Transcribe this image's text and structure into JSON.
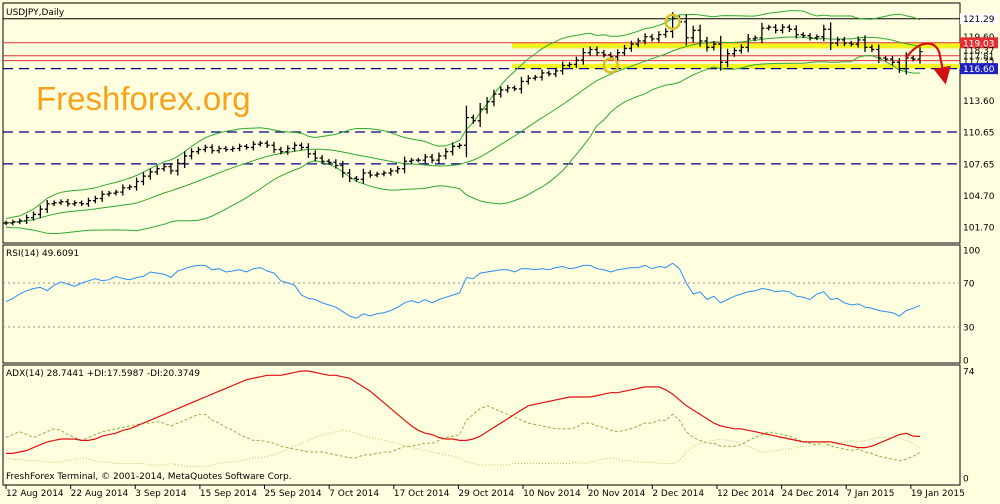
{
  "header": {
    "symbol_label": "USDJPY,Daily"
  },
  "watermark": "Freshforex.org",
  "footer": {
    "copyright": "FreshForex Terminal, © 2001-2014, MetaQuotes Software Corp."
  },
  "colors": {
    "background": "#ffffe0",
    "bollinger": "#2ea82e",
    "rsi": "#2a8df0",
    "adx": "#e01010",
    "di_plus": "#8fb04a",
    "di_minus": "#c0c060",
    "level_red": "#e03030",
    "level_yellow": "#f3f300",
    "watermark": "#f7a11a",
    "forecast_arrow": "#d01010"
  },
  "chart_data": [
    {
      "type": "candlestick",
      "title": "USDJPY,Daily",
      "ylim": [
        100.5,
        122.3
      ],
      "y_ticks": [
        "121.29",
        "119.60",
        "119.03",
        "118.37",
        "117.81",
        "117.35",
        "116.60",
        "113.60",
        "110.65",
        "107.65",
        "104.70",
        "101.70"
      ],
      "y_tick_values": [
        121.29,
        119.6,
        119.03,
        118.37,
        117.81,
        117.35,
        116.6,
        113.6,
        110.65,
        107.65,
        104.7,
        101.7
      ],
      "highlighted_ticks": [
        "121.29",
        "119.03",
        "116.60"
      ],
      "x_labels": [
        "12 Aug 2014",
        "22 Aug 2014",
        "3 Sep 2014",
        "15 Sep 2014",
        "25 Sep 2014",
        "7 Oct 2014",
        "17 Oct 2014",
        "29 Oct 2014",
        "10 Nov 2014",
        "20 Nov 2014",
        "2 Dec 2014",
        "12 Dec 2014",
        "24 Dec 2014",
        "7 Jan 2015",
        "19 Jan 2015"
      ],
      "close": [
        102.1,
        102.2,
        102.3,
        102.6,
        102.9,
        103.4,
        103.9,
        104.0,
        104.1,
        103.9,
        104.0,
        103.9,
        104.2,
        104.4,
        104.8,
        104.9,
        105.0,
        105.4,
        105.5,
        106.0,
        106.5,
        106.9,
        107.2,
        107.4,
        107.0,
        107.7,
        108.4,
        108.8,
        109.0,
        109.2,
        108.9,
        109.1,
        109.0,
        109.1,
        109.3,
        109.2,
        109.5,
        109.6,
        109.4,
        109.0,
        108.8,
        109.1,
        109.4,
        109.2,
        108.6,
        108.2,
        107.9,
        107.8,
        107.5,
        106.8,
        106.3,
        106.2,
        106.8,
        106.6,
        106.7,
        106.8,
        107.0,
        107.2,
        107.9,
        108.0,
        108.0,
        108.3,
        108.0,
        108.4,
        108.8,
        109.3,
        109.4,
        112.0,
        111.7,
        112.8,
        113.5,
        114.2,
        114.6,
        114.8,
        114.7,
        115.4,
        115.7,
        115.8,
        116.2,
        116.1,
        116.4,
        116.9,
        117.0,
        117.4,
        118.1,
        118.4,
        118.1,
        117.9,
        117.7,
        118.1,
        118.5,
        118.9,
        119.2,
        119.6,
        119.4,
        119.8,
        120.1,
        121.3,
        121.0,
        119.5,
        120.2,
        119.2,
        118.6,
        118.9,
        117.2,
        118.0,
        118.3,
        118.6,
        119.4,
        119.5,
        120.4,
        120.5,
        120.2,
        120.5,
        120.3,
        119.8,
        119.7,
        119.5,
        119.6,
        120.3,
        119.0,
        119.3,
        119.0,
        118.9,
        119.3,
        118.6,
        118.4,
        117.6,
        117.5,
        117.2,
        116.6,
        117.6,
        117.5,
        118.2
      ],
      "horizontal_levels": [
        {
          "value": 121.29,
          "style": "solid",
          "color": "#000000"
        },
        {
          "value": 119.03,
          "style": "solid",
          "color": "#e03030"
        },
        {
          "value": 117.81,
          "style": "solid",
          "color": "#e03030"
        },
        {
          "value": 117.35,
          "style": "solid",
          "color": "#e03030"
        },
        {
          "value": 116.6,
          "style": "dashed",
          "color": "#000080"
        },
        {
          "value": 110.65,
          "style": "dashed",
          "color": "#000080"
        },
        {
          "value": 107.65,
          "style": "dashed",
          "color": "#000080"
        }
      ],
      "highlight_zones": [
        {
          "from": 118.5,
          "to": 119.03,
          "color": "#f3f300"
        },
        {
          "from": 116.6,
          "to": 117.05,
          "color": "#f3f300"
        }
      ],
      "indicator": "Bollinger Bands"
    },
    {
      "type": "line",
      "title": "RSI(14) 49.6091",
      "ylim": [
        0,
        100
      ],
      "y_ticks": [
        "100",
        "70",
        "30",
        "0"
      ],
      "levels": [
        70,
        30
      ],
      "series": [
        {
          "name": "RSI(14)",
          "values": [
            53,
            56,
            60,
            63,
            65,
            66,
            63,
            68,
            71,
            69,
            67,
            70,
            72,
            74,
            72,
            73,
            76,
            74,
            73,
            75,
            76,
            80,
            79,
            78,
            75,
            81,
            83,
            85,
            86,
            86,
            82,
            83,
            80,
            81,
            82,
            80,
            83,
            84,
            81,
            79,
            72,
            70,
            68,
            59,
            56,
            55,
            52,
            50,
            48,
            44,
            40,
            38,
            42,
            40,
            42,
            43,
            45,
            48,
            52,
            54,
            52,
            55,
            52,
            55,
            57,
            59,
            61,
            75,
            74,
            79,
            80,
            81,
            82,
            82,
            80,
            83,
            83,
            82,
            83,
            82,
            84,
            85,
            83,
            84,
            86,
            86,
            83,
            82,
            80,
            82,
            83,
            84,
            84,
            86,
            83,
            85,
            84,
            88,
            83,
            70,
            60,
            62,
            55,
            58,
            52,
            55,
            58,
            60,
            62,
            63,
            65,
            64,
            62,
            63,
            62,
            58,
            57,
            55,
            60,
            62,
            55,
            56,
            52,
            50,
            51,
            48,
            47,
            45,
            44,
            43,
            40,
            45,
            47,
            49.6
          ]
        }
      ]
    },
    {
      "type": "line",
      "title": "ADX(14) 28.7441 +DI:17.5987 -DI:20.3749",
      "ylim": [
        0,
        74
      ],
      "y_ticks": [
        "74",
        "0"
      ],
      "series": [
        {
          "name": "ADX(14)",
          "values": [
            17,
            17,
            18,
            19,
            21,
            23,
            25,
            26,
            27,
            27,
            27,
            26,
            26,
            27,
            29,
            30,
            31,
            33,
            34,
            36,
            38,
            40,
            42,
            44,
            46,
            48,
            50,
            52,
            54,
            56,
            58,
            60,
            62,
            64,
            66,
            68,
            69,
            70,
            71,
            71,
            71,
            72,
            73,
            74,
            74,
            73,
            72,
            71,
            71,
            70,
            69,
            66,
            63,
            60,
            56,
            52,
            48,
            44,
            40,
            36,
            33,
            31,
            30,
            28,
            27,
            27,
            26,
            26,
            27,
            29,
            32,
            35,
            38,
            41,
            44,
            47,
            50,
            51,
            52,
            53,
            54,
            55,
            56,
            56,
            56,
            56,
            57,
            58,
            59,
            59,
            60,
            61,
            62,
            63,
            63,
            63,
            61,
            58,
            54,
            50,
            47,
            44,
            41,
            38,
            36,
            35,
            34,
            34,
            33,
            32,
            31,
            30,
            29,
            28,
            27,
            26,
            25,
            25,
            25,
            25,
            25,
            24,
            23,
            22,
            21,
            21,
            22,
            24,
            26,
            28,
            30,
            31,
            29,
            28.7
          ]
        },
        {
          "name": "+DI",
          "values": [
            28,
            30,
            32,
            30,
            28,
            30,
            32,
            34,
            33,
            30,
            28,
            26,
            28,
            30,
            32,
            33,
            34,
            35,
            36,
            37,
            38,
            38,
            39,
            38,
            36,
            38,
            40,
            42,
            44,
            44,
            40,
            38,
            35,
            33,
            30,
            28,
            26,
            26,
            25,
            24,
            22,
            21,
            20,
            19,
            18,
            18,
            18,
            17,
            16,
            15,
            14,
            14,
            16,
            16,
            17,
            18,
            18,
            20,
            22,
            22,
            23,
            24,
            24,
            26,
            28,
            29,
            30,
            40,
            44,
            48,
            50,
            48,
            46,
            44,
            42,
            40,
            38,
            37,
            36,
            35,
            34,
            34,
            34,
            35,
            38,
            38,
            36,
            35,
            33,
            32,
            33,
            34,
            36,
            38,
            38,
            40,
            40,
            44,
            40,
            32,
            28,
            26,
            24,
            24,
            22,
            22,
            22,
            23,
            26,
            28,
            30,
            32,
            31,
            30,
            29,
            27,
            25,
            24,
            23,
            25,
            22,
            21,
            20,
            19,
            20,
            18,
            17,
            15,
            14,
            13,
            12,
            13,
            15,
            17.6
          ]
        },
        {
          "name": "-DI",
          "values": [
            14,
            13,
            13,
            12,
            12,
            12,
            11,
            11,
            11,
            12,
            13,
            14,
            13,
            12,
            11,
            11,
            10,
            10,
            10,
            10,
            10,
            9,
            9,
            9,
            10,
            9,
            8,
            8,
            8,
            8,
            9,
            10,
            11,
            11,
            12,
            13,
            14,
            14,
            15,
            16,
            18,
            20,
            22,
            24,
            26,
            28,
            30,
            31,
            32,
            33,
            32,
            31,
            29,
            28,
            27,
            26,
            25,
            24,
            22,
            21,
            20,
            19,
            18,
            17,
            16,
            15,
            14,
            11,
            10,
            9,
            9,
            9,
            9,
            9,
            10,
            10,
            10,
            10,
            10,
            10,
            10,
            10,
            10,
            11,
            10,
            11,
            12,
            13,
            14,
            13,
            12,
            12,
            11,
            11,
            11,
            10,
            10,
            10,
            12,
            18,
            22,
            24,
            25,
            26,
            27,
            26,
            25,
            24,
            22,
            20,
            18,
            18,
            19,
            20,
            20,
            21,
            22,
            22,
            23,
            22,
            23,
            24,
            25,
            26,
            25,
            26,
            27,
            28,
            28,
            28,
            28,
            26,
            24,
            20.4
          ]
        }
      ]
    }
  ]
}
